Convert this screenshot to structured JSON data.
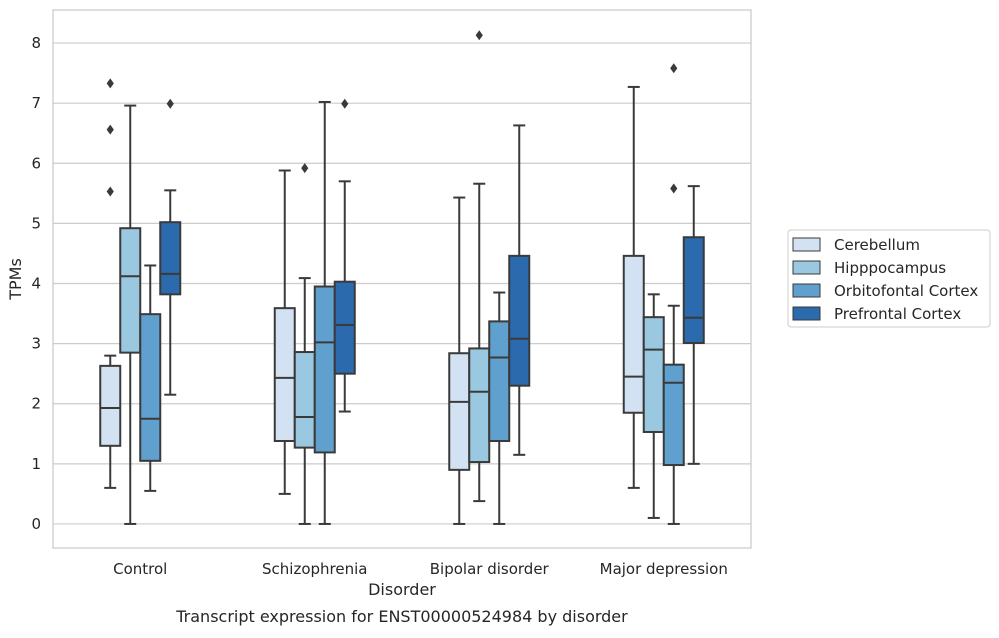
{
  "chart_data": {
    "type": "box",
    "title": "",
    "caption": "Transcript expression for ENST00000524984 by disorder",
    "xlabel": "Disorder",
    "ylabel": "TPMs",
    "ylim": [
      -0.4,
      8.55
    ],
    "yticks": [
      "0",
      "1",
      "2",
      "3",
      "4",
      "5",
      "6",
      "7",
      "8"
    ],
    "grid": true,
    "legend_position": "right",
    "categories": [
      "Control",
      "Schizophrenia",
      "Bipolar disorder",
      "Major depression"
    ],
    "series": [
      {
        "name": "Cerebellum",
        "color": "#d2e2f2",
        "boxes": [
          {
            "whislo": 0.6,
            "q1": 1.3,
            "med": 1.93,
            "q3": 2.63,
            "whishi": 2.8,
            "fliers": [
              5.53,
              6.56,
              7.33
            ]
          },
          {
            "whislo": 0.5,
            "q1": 1.38,
            "med": 2.43,
            "q3": 3.59,
            "whishi": 5.88,
            "fliers": []
          },
          {
            "whislo": 0.0,
            "q1": 0.9,
            "med": 2.03,
            "q3": 2.84,
            "whishi": 5.43,
            "fliers": []
          },
          {
            "whislo": 0.6,
            "q1": 1.85,
            "med": 2.45,
            "q3": 4.46,
            "whishi": 7.27,
            "fliers": []
          }
        ]
      },
      {
        "name": "Hipppocampus",
        "color": "#9ac8e0",
        "boxes": [
          {
            "whislo": 0.0,
            "q1": 2.85,
            "med": 4.12,
            "q3": 4.92,
            "whishi": 6.96,
            "fliers": []
          },
          {
            "whislo": 0.0,
            "q1": 1.27,
            "med": 1.78,
            "q3": 2.86,
            "whishi": 4.09,
            "fliers": [
              5.92
            ]
          },
          {
            "whislo": 0.38,
            "q1": 1.03,
            "med": 2.2,
            "q3": 2.92,
            "whishi": 5.66,
            "fliers": [
              8.13
            ]
          },
          {
            "whislo": 0.1,
            "q1": 1.53,
            "med": 2.9,
            "q3": 3.44,
            "whishi": 3.82,
            "fliers": []
          }
        ]
      },
      {
        "name": "Orbitofontal Cortex",
        "color": "#5fa0cf",
        "boxes": [
          {
            "whislo": 0.55,
            "q1": 1.05,
            "med": 1.75,
            "q3": 3.49,
            "whishi": 4.3,
            "fliers": []
          },
          {
            "whislo": 0.0,
            "q1": 1.19,
            "med": 3.02,
            "q3": 3.95,
            "whishi": 7.02,
            "fliers": []
          },
          {
            "whislo": 0.0,
            "q1": 1.38,
            "med": 2.77,
            "q3": 3.37,
            "whishi": 3.85,
            "fliers": []
          },
          {
            "whislo": 0.0,
            "q1": 0.98,
            "med": 2.35,
            "q3": 2.65,
            "whishi": 3.63,
            "fliers": [
              5.58,
              7.58
            ]
          }
        ]
      },
      {
        "name": "Prefrontal Cortex",
        "color": "#2a6aad",
        "boxes": [
          {
            "whislo": 2.15,
            "q1": 3.82,
            "med": 4.16,
            "q3": 5.02,
            "whishi": 5.55,
            "fliers": [
              6.99
            ]
          },
          {
            "whislo": 1.87,
            "q1": 2.5,
            "med": 3.31,
            "q3": 4.03,
            "whishi": 5.7,
            "fliers": [
              6.99
            ]
          },
          {
            "whislo": 1.15,
            "q1": 2.3,
            "med": 3.08,
            "q3": 4.46,
            "whishi": 6.63,
            "fliers": []
          },
          {
            "whislo": 1.0,
            "q1": 3.01,
            "med": 3.43,
            "q3": 4.77,
            "whishi": 5.62,
            "fliers": []
          }
        ]
      }
    ]
  }
}
